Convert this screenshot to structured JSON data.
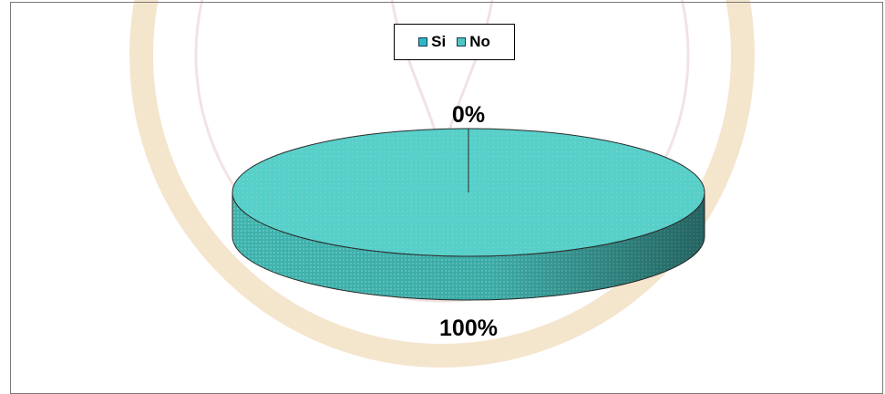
{
  "chart_data": {
    "type": "pie",
    "style": "3d",
    "categories": [
      "Si",
      "No"
    ],
    "values": [
      100,
      0
    ],
    "data_labels": [
      "100%",
      "0%"
    ],
    "legend": {
      "position": "top",
      "entries": [
        {
          "label": "Si",
          "color": "#2FB8C4"
        },
        {
          "label": "No",
          "color": "#4FC6C0"
        }
      ]
    },
    "colors": {
      "top": "#58CFC9",
      "side_light": "#3FB3AE",
      "side_dark": "#2A8582",
      "outline": "#2b2b2b"
    }
  }
}
